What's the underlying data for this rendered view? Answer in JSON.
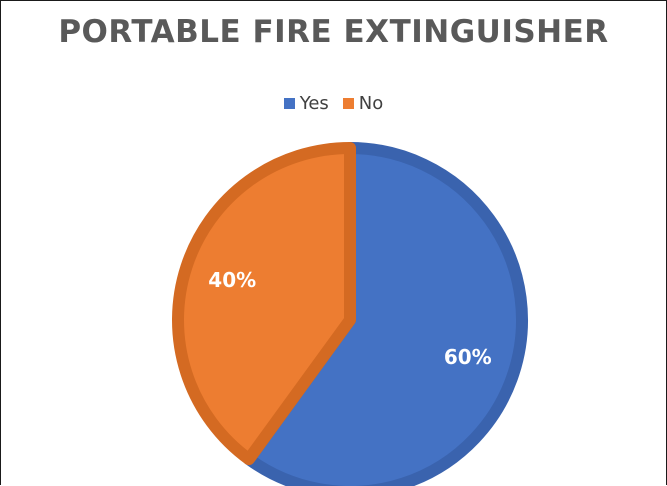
{
  "chart_data": {
    "type": "pie",
    "title": "PORTABLE FIRE EXTINGUISHER",
    "legend_position": "top",
    "slices": [
      {
        "label": "Yes",
        "value": 60,
        "display": "60%",
        "color": "#4472C4",
        "border": "#3A63AE"
      },
      {
        "label": "No",
        "value": 40,
        "display": "40%",
        "color": "#ED7D31",
        "border": "#D46A22"
      }
    ]
  }
}
